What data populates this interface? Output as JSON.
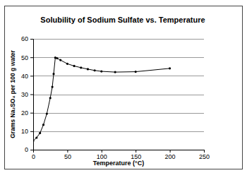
{
  "chart_data": {
    "type": "line",
    "title": "Solubility of Sodium Sulfate vs. Temperature",
    "x_label": "Temperature (°C)",
    "y_label": "Grams Na₂SO₄ per 100 g water",
    "x": [
      0,
      5,
      10,
      15,
      20,
      25,
      28,
      30,
      32.4,
      35,
      40,
      50,
      60,
      70,
      80,
      90,
      100,
      120,
      150,
      200
    ],
    "values": [
      4.8,
      6.5,
      9.0,
      13.5,
      19.5,
      28.0,
      34.0,
      41.0,
      49.8,
      49.5,
      48.5,
      46.5,
      45.3,
      44.4,
      43.6,
      42.9,
      42.4,
      42.0,
      42.2,
      44.0
    ],
    "color": "#000000",
    "marker": "circle",
    "xlim": [
      0,
      250
    ],
    "xticks": [
      0,
      50,
      100,
      150,
      200,
      250
    ],
    "ylim": [
      0,
      60
    ],
    "yticks": [
      0,
      10,
      20,
      30,
      40,
      50,
      60
    ],
    "grid": true
  }
}
